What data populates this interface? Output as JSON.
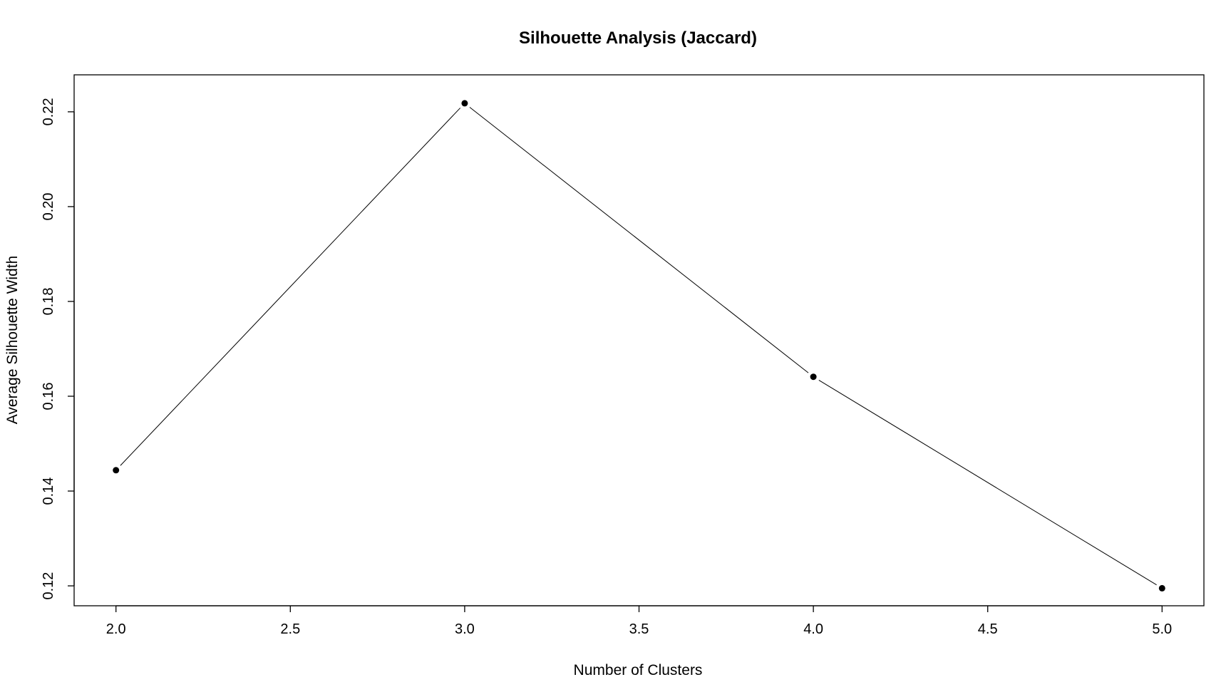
{
  "chart_data": {
    "type": "line",
    "title": "Silhouette Analysis (Jaccard)",
    "xlabel": "Number of Clusters",
    "ylabel": "Average Silhouette Width",
    "x": [
      2,
      3,
      4,
      5
    ],
    "series": [
      {
        "values": [
          0.1444,
          0.2218,
          0.1641,
          0.1195
        ]
      }
    ],
    "xlim": [
      1.88,
      5.12
    ],
    "ylim": [
      0.1158,
      0.2278
    ],
    "x_ticks": [
      2.0,
      2.5,
      3.0,
      3.5,
      4.0,
      4.5,
      5.0
    ],
    "x_tick_labels": [
      "2.0",
      "2.5",
      "3.0",
      "3.5",
      "4.0",
      "4.5",
      "5.0"
    ],
    "y_ticks": [
      0.12,
      0.14,
      0.16,
      0.18,
      0.2,
      0.22
    ],
    "y_tick_labels": [
      "0.12",
      "0.14",
      "0.16",
      "0.18",
      "0.20",
      "0.22"
    ],
    "grid": false,
    "legend": "none",
    "marker": "filled-circle",
    "line_color": "#000000",
    "marker_color": "#000000"
  }
}
